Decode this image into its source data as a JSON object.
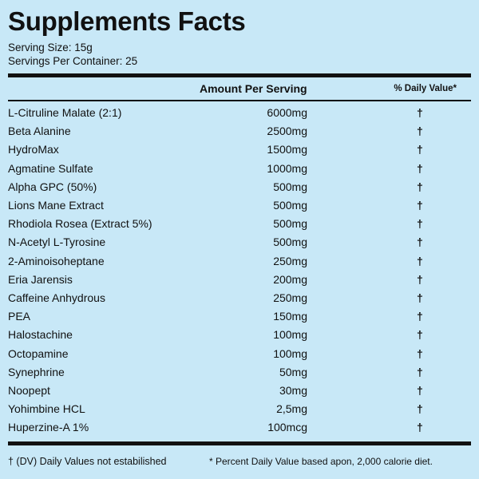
{
  "header": {
    "title": "Supplements Facts",
    "serving_size": "Serving Size: 15g",
    "servings_per_container": "Servings Per Container: 25"
  },
  "table": {
    "columns": [
      "Amount Per Serving",
      "% Daily Value*"
    ],
    "rows": [
      [
        "L-Citruline Malate (2:1)",
        "6000mg",
        "†"
      ],
      [
        "Beta Alanine",
        "2500mg",
        "†"
      ],
      [
        "HydroMax",
        "1500mg",
        "†"
      ],
      [
        "Agmatine Sulfate",
        "1000mg",
        "†"
      ],
      [
        "Alpha GPC (50%)",
        "500mg",
        "†"
      ],
      [
        "Lions Mane Extract",
        "500mg",
        "†"
      ],
      [
        "Rhodiola Rosea (Extract 5%)",
        "500mg",
        "†"
      ],
      [
        "N-Acetyl L-Tyrosine",
        "500mg",
        "†"
      ],
      [
        "2-Aminoisoheptane",
        "250mg",
        "†"
      ],
      [
        "Eria Jarensis",
        "200mg",
        "†"
      ],
      [
        "Caffeine Anhydrous",
        "250mg",
        "†"
      ],
      [
        "PEA",
        "150mg",
        "†"
      ],
      [
        "Halostachine",
        "100mg",
        "†"
      ],
      [
        "Octopamine",
        "100mg",
        "†"
      ],
      [
        "Synephrine",
        "50mg",
        "†"
      ],
      [
        "Noopept",
        "30mg",
        "†"
      ],
      [
        "Yohimbine HCL",
        "2,5mg",
        "†"
      ],
      [
        "Huperzine-A 1%",
        "100mcg",
        "†"
      ]
    ]
  },
  "footer": {
    "dv_note": "† (DV) Daily Values not estabilished",
    "percent_note": "* Percent Daily Value based apon, 2,000 calorie diet."
  }
}
